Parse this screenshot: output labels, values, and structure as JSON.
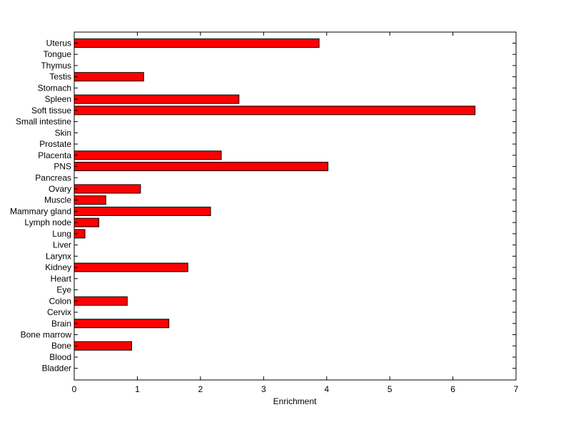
{
  "chart_data": {
    "type": "bar",
    "orientation": "horizontal",
    "categories": [
      "Uterus",
      "Tongue",
      "Thymus",
      "Testis",
      "Stomach",
      "Spleen",
      "Soft tissue",
      "Small intestine",
      "Skin",
      "Prostate",
      "Placenta",
      "PNS",
      "Pancreas",
      "Ovary",
      "Muscle",
      "Mammary gland",
      "Lymph node",
      "Lung",
      "Liver",
      "Larynx",
      "Kidney",
      "Heart",
      "Eye",
      "Colon",
      "Cervix",
      "Brain",
      "Bone marrow",
      "Bone",
      "Blood",
      "Bladder"
    ],
    "values": [
      3.88,
      0,
      0,
      1.1,
      0,
      2.61,
      6.35,
      0,
      0,
      0,
      2.33,
      4.02,
      0,
      1.05,
      0.5,
      2.16,
      0.39,
      0.17,
      0,
      0,
      1.8,
      0,
      0,
      0.84,
      0,
      1.5,
      0,
      0.91,
      0,
      0
    ],
    "xlabel": "Enrichment",
    "ylabel": "",
    "title": "",
    "xlim": [
      0,
      7
    ],
    "xticks": [
      "0",
      "1",
      "2",
      "3",
      "4",
      "5",
      "6",
      "7"
    ],
    "bar_color": "#ff0000",
    "grid": false
  }
}
